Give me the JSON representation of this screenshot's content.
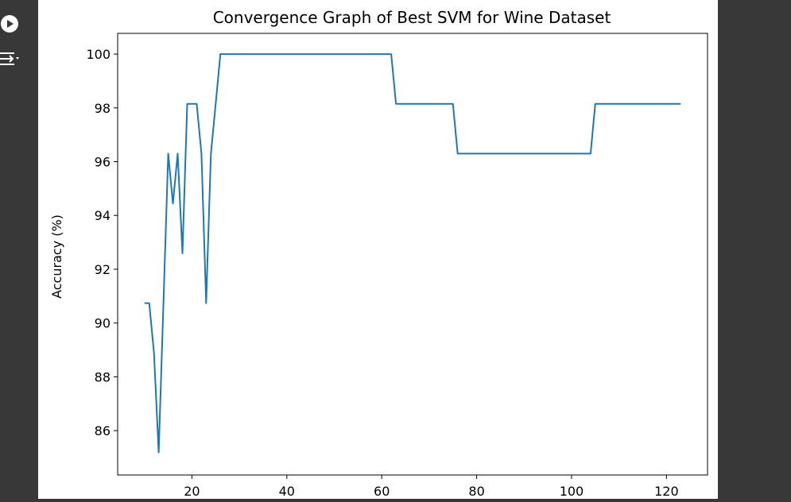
{
  "notebook": {
    "run_icon": "play-circle-icon",
    "output_icon": "output-toggle-icon"
  },
  "chart_data": {
    "type": "line",
    "title": "Convergence Graph of Best SVM for Wine Dataset",
    "xlabel": "",
    "ylabel": "Accuracy (%)",
    "xlim": [
      4.35,
      128.65
    ],
    "ylim": [
      84.35,
      100.77
    ],
    "x_ticks": [
      20,
      40,
      60,
      80,
      100,
      120
    ],
    "y_ticks": [
      86,
      88,
      90,
      92,
      94,
      96,
      98,
      100
    ],
    "grid": false,
    "line_color": "#1f77b4",
    "series": [
      {
        "x": [
          10,
          11,
          12,
          13,
          14,
          15,
          16,
          17,
          18,
          19,
          20,
          21,
          22,
          23,
          24,
          25,
          26,
          62,
          63,
          75,
          76,
          104,
          105,
          123
        ],
        "y": [
          90.74,
          90.74,
          88.89,
          85.19,
          90.74,
          96.3,
          94.44,
          96.3,
          92.59,
          98.15,
          98.15,
          98.15,
          96.3,
          90.74,
          96.3,
          98.15,
          100,
          100,
          98.15,
          98.15,
          96.3,
          96.3,
          98.15,
          98.15
        ]
      }
    ]
  }
}
